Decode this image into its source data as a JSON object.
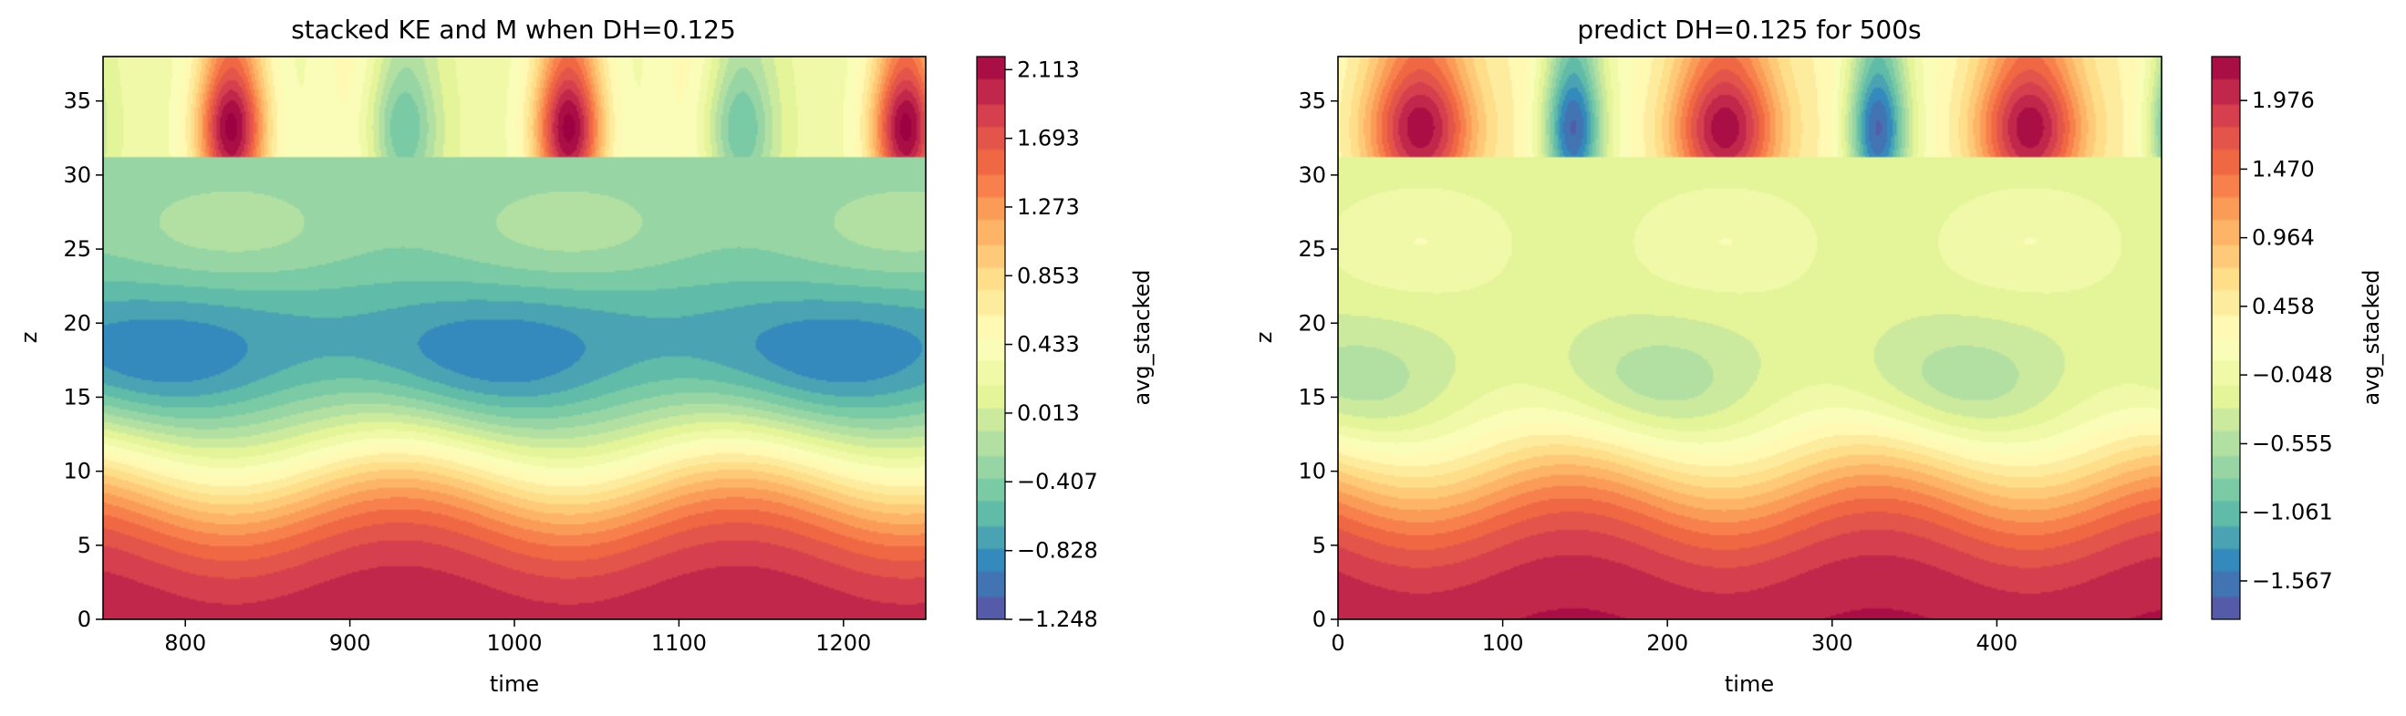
{
  "chart_data": [
    {
      "type": "heatmap",
      "title": "stacked KE and M when DH=0.125",
      "xlabel": "time",
      "ylabel": "z",
      "xlim": [
        750,
        1250
      ],
      "ylim": [
        0,
        38
      ],
      "x_ticks": [
        800,
        900,
        1000,
        1100,
        1200
      ],
      "y_ticks": [
        0,
        5,
        10,
        15,
        20,
        25,
        30,
        35
      ],
      "colorbar": {
        "label": "avg_stacked",
        "range": [
          -1.248,
          2.193
        ],
        "ticks": [
          -1.248,
          -0.828,
          -0.407,
          0.013,
          0.433,
          0.853,
          1.273,
          1.693,
          2.113
        ]
      },
      "field": {
        "period": 205,
        "peak_times": [
          828,
          1033,
          1238
        ],
        "low_band_z": [
          0,
          12
        ],
        "mid_cell_z": 16.5,
        "upper_cell_z": 26,
        "interface_z": 31.2,
        "top_range": [
          31,
          38
        ]
      }
    },
    {
      "type": "heatmap",
      "title": "predict DH=0.125 for 500s",
      "xlabel": "time",
      "ylabel": "z",
      "xlim": [
        0,
        500
      ],
      "ylim": [
        0,
        38
      ],
      "x_ticks": [
        0,
        100,
        200,
        300,
        400
      ],
      "y_ticks": [
        0,
        5,
        10,
        15,
        20,
        25,
        30,
        35
      ],
      "colorbar": {
        "label": "avg_stacked",
        "range": [
          -1.85,
          2.3
        ],
        "ticks": [
          -1.567,
          -1.061,
          -0.555,
          -0.048,
          0.458,
          0.964,
          1.47,
          1.976
        ]
      },
      "field": {
        "period": 185,
        "peak_times": [
          50,
          235,
          420
        ],
        "low_band_z": [
          0,
          12
        ],
        "mid_cell_z": 15.5,
        "upper_cell_z": 25.5,
        "interface_z": 31.2,
        "top_range": [
          31,
          38
        ]
      }
    }
  ]
}
